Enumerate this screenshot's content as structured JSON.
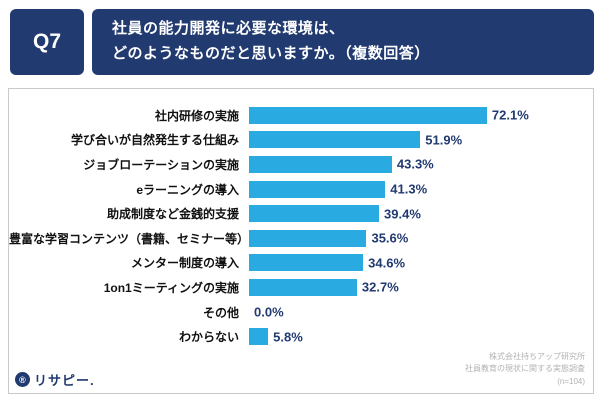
{
  "colors": {
    "header_bg": "#213A70",
    "bar": "#29ABE2",
    "value_text": "#213A70",
    "logo_navy": "#213A70"
  },
  "header": {
    "q_label": "Q7",
    "title_line1": "社員の能力開発に必要な環境は、",
    "title_line2": "どのようなものだと思いますか。（複数回答）"
  },
  "chart_data": {
    "type": "bar",
    "orientation": "horizontal",
    "title": "社員の能力開発に必要な環境は、どのようなものだと思いますか。（複数回答）",
    "categories": [
      "社内研修の実施",
      "学び合いが自然発生する仕組み",
      "ジョブローテーションの実施",
      "eラーニングの導入",
      "助成制度など金銭的支援",
      "豊富な学習コンテンツ（書籍、セミナー等）",
      "メンター制度の導入",
      "1on1ミーティングの実施",
      "その他",
      "わからない"
    ],
    "values": [
      72.1,
      51.9,
      43.3,
      41.3,
      39.4,
      35.6,
      34.6,
      32.7,
      0.0,
      5.8
    ],
    "value_labels": [
      "72.1%",
      "51.9%",
      "43.3%",
      "41.3%",
      "39.4%",
      "35.6%",
      "34.6%",
      "32.7%",
      "0.0%",
      "5.8%"
    ],
    "xlim": [
      0,
      100
    ],
    "grid": false,
    "legend": false
  },
  "footer": {
    "logo_icon": "®",
    "logo_text": "リサピー.",
    "credit_lines": [
      "株式会社持ちアップ研究所",
      "社員教育の現状に関する実態調査",
      "(n=104)"
    ]
  }
}
